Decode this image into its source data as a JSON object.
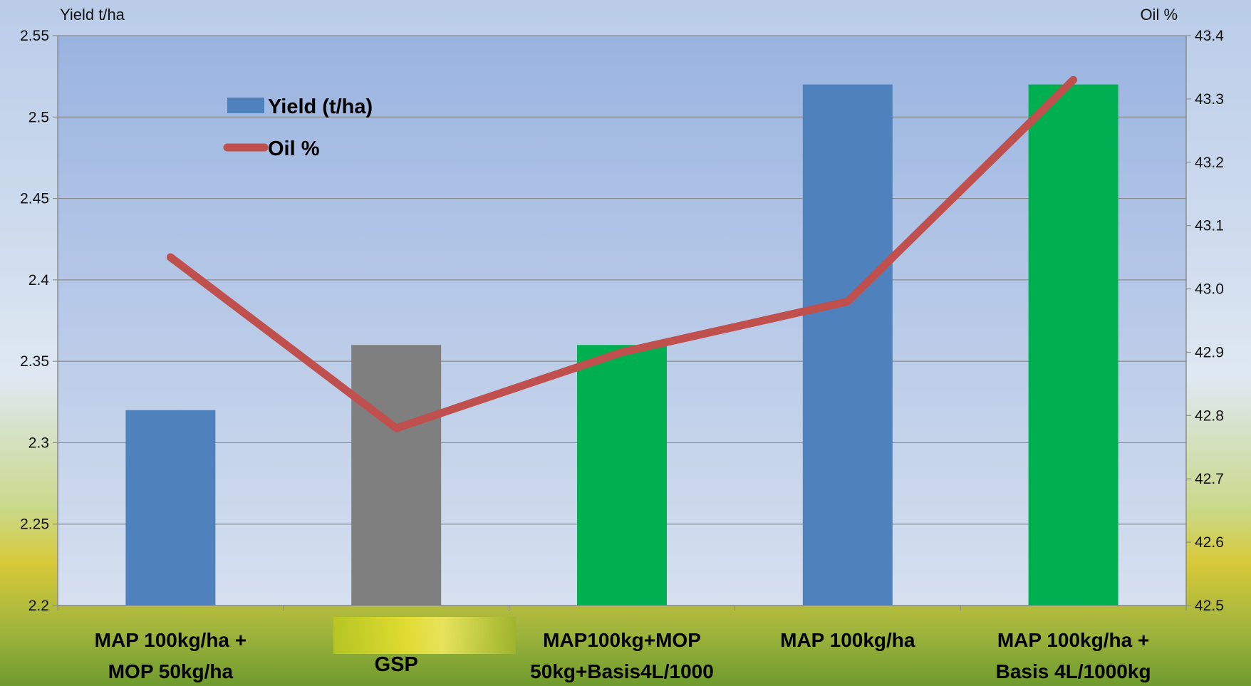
{
  "colors": {
    "plot_top": "#9ab4e0",
    "plot_bottom": "#d6e0ef",
    "grid": "#8c8c8c",
    "oil_line": "#c0504d",
    "bar_blue": "#4f81bd",
    "bar_grey": "#7f7f7f",
    "bar_green": "#00b050"
  },
  "chart_data": {
    "type": "bar",
    "categories": [
      [
        "MAP 100kg/ha +",
        "MOP 50kg/ha"
      ],
      [
        "GSP"
      ],
      [
        "MAP100kg+MOP",
        "50kg+Basis4L/1000"
      ],
      [
        "MAP 100kg/ha"
      ],
      [
        "MAP 100kg/ha +",
        "Basis 4L/1000kg"
      ]
    ],
    "series": [
      {
        "name": "Yield (t/ha)",
        "type": "bar",
        "axis": "left",
        "values": [
          2.32,
          2.36,
          2.36,
          2.52,
          2.52
        ],
        "bar_colors": [
          "#4f81bd",
          "#7f7f7f",
          "#00b050",
          "#4f81bd",
          "#00b050"
        ]
      },
      {
        "name": "Oil %",
        "type": "line",
        "axis": "right",
        "values": [
          43.05,
          42.78,
          42.9,
          42.98,
          43.33
        ],
        "color": "#c0504d"
      }
    ],
    "ylabel": "Yield t/ha",
    "y2label": "Oil %",
    "ylim": [
      2.2,
      2.55
    ],
    "yticks": [
      "2.55",
      "2.5",
      "2.45",
      "2.4",
      "2.35",
      "2.3",
      "2.25",
      "2.2"
    ],
    "y2lim": [
      42.5,
      43.4
    ],
    "y2ticks": [
      "43.4",
      "43.3",
      "43.2",
      "43.1",
      "43.0",
      "42.9",
      "42.8",
      "42.7",
      "42.6",
      "42.5"
    ],
    "grid": true,
    "legend_position": "top-left"
  }
}
